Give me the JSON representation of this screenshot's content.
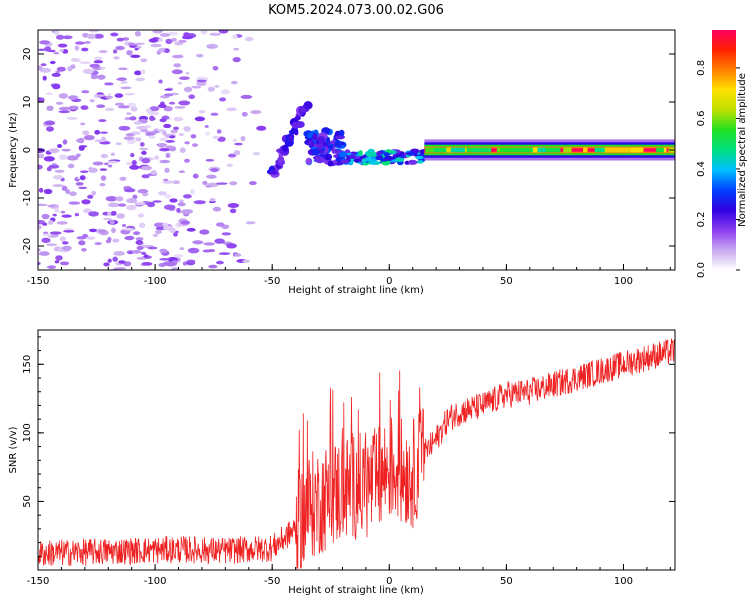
{
  "figure": {
    "title": "KOM5.2024.073.00.02.G06"
  },
  "chart_data": [
    {
      "type": "heatmap",
      "xlabel": "Height of straight line (km)",
      "ylabel": "Frequency (Hz)",
      "xlim": [
        -150,
        122
      ],
      "ylim": [
        -25,
        25
      ],
      "x_ticks": [
        -150,
        -100,
        -50,
        0,
        50,
        100
      ],
      "y_ticks": [
        -20,
        -10,
        0,
        10,
        20
      ],
      "colorbar": {
        "label": "Normalized spectral amplitude",
        "range": [
          0,
          0.95
        ],
        "ticks": [
          0.0,
          0.2,
          0.4,
          0.6,
          0.8
        ],
        "tick_labels": [
          "0.0",
          "0.2",
          "0.4",
          "0.6",
          "0.8"
        ],
        "colormap": [
          "#ffffff",
          "#c9a8f0",
          "#8a3cf0",
          "#3000e0",
          "#0040ff",
          "#00c0ff",
          "#00e080",
          "#20e020",
          "#c0e000",
          "#ffe000",
          "#ff8000",
          "#ff2000",
          "#ff0060"
        ]
      },
      "features": [
        {
          "name": "noise",
          "x_range": [
            -150,
            -50
          ],
          "freq_range": [
            -25,
            25
          ],
          "amplitude": 0.1
        },
        {
          "name": "branch",
          "points": [
            [
              -50,
              -5
            ],
            [
              -45,
              0
            ],
            [
              -40,
              5
            ],
            [
              -35,
              10
            ]
          ],
          "amplitude": 0.15
        },
        {
          "name": "blob",
          "x_range": [
            -35,
            -20
          ],
          "freq_range": [
            -3,
            4
          ],
          "amplitude": 0.25
        },
        {
          "name": "trail",
          "x_range": [
            -20,
            15
          ],
          "freq": -1.5,
          "amplitude": 0.35
        },
        {
          "name": "carrier",
          "x_range": [
            15,
            122
          ],
          "freq": 0,
          "amplitude": 0.9
        }
      ]
    },
    {
      "type": "line",
      "xlabel": "Height of straight line (km)",
      "ylabel": "SNR (v/v)",
      "xlim": [
        -150,
        122
      ],
      "ylim": [
        0,
        175
      ],
      "x_ticks": [
        -150,
        -100,
        -50,
        0,
        50,
        100
      ],
      "y_ticks": [
        50,
        100,
        150
      ],
      "series": [
        {
          "color": "#ee2222",
          "x": [
            -150,
            -130,
            -110,
            -90,
            -70,
            -50,
            -40,
            -35,
            -30,
            -25,
            -20,
            -15,
            -10,
            -5,
            0,
            5,
            10,
            15,
            20,
            25,
            30,
            40,
            50,
            60,
            70,
            80,
            90,
            100,
            110,
            122
          ],
          "y": [
            12,
            13,
            14,
            15,
            14,
            16,
            30,
            45,
            50,
            55,
            58,
            62,
            60,
            65,
            75,
            72,
            70,
            85,
            95,
            110,
            115,
            120,
            128,
            130,
            135,
            140,
            145,
            150,
            155,
            160
          ],
          "noise_amplitude": 10
        }
      ]
    }
  ]
}
